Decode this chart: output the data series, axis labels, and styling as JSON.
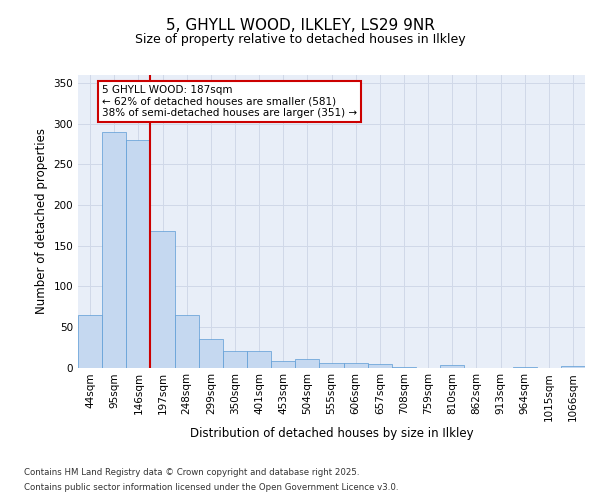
{
  "title_line1": "5, GHYLL WOOD, ILKLEY, LS29 9NR",
  "title_line2": "Size of property relative to detached houses in Ilkley",
  "xlabel": "Distribution of detached houses by size in Ilkley",
  "ylabel": "Number of detached properties",
  "categories": [
    "44sqm",
    "95sqm",
    "146sqm",
    "197sqm",
    "248sqm",
    "299sqm",
    "350sqm",
    "401sqm",
    "453sqm",
    "504sqm",
    "555sqm",
    "606sqm",
    "657sqm",
    "708sqm",
    "759sqm",
    "810sqm",
    "862sqm",
    "913sqm",
    "964sqm",
    "1015sqm",
    "1066sqm"
  ],
  "values": [
    65,
    290,
    280,
    168,
    65,
    35,
    20,
    20,
    8,
    10,
    6,
    5,
    4,
    1,
    0,
    3,
    0,
    0,
    1,
    0,
    2
  ],
  "bar_color": "#c5d8f0",
  "bar_edge_color": "#5b9bd5",
  "red_line_index": 3,
  "annotation_line1": "5 GHYLL WOOD: 187sqm",
  "annotation_line2": "← 62% of detached houses are smaller (581)",
  "annotation_line3": "38% of semi-detached houses are larger (351) →",
  "annotation_box_color": "#ffffff",
  "annotation_box_edge_color": "#cc0000",
  "red_line_color": "#cc0000",
  "footer_line1": "Contains HM Land Registry data © Crown copyright and database right 2025.",
  "footer_line2": "Contains public sector information licensed under the Open Government Licence v3.0.",
  "ylim": [
    0,
    360
  ],
  "yticks": [
    0,
    50,
    100,
    150,
    200,
    250,
    300,
    350
  ],
  "grid_color": "#d0d8e8",
  "background_color": "#e8eef8",
  "fig_background": "#ffffff"
}
